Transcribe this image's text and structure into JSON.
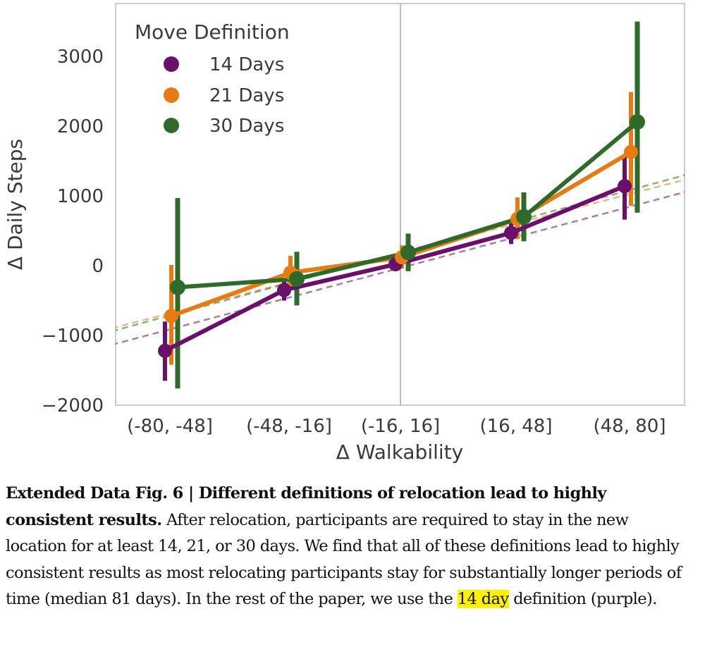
{
  "chart_data": {
    "type": "line",
    "xlabel": "Δ Walkability",
    "ylabel": "Δ Daily Steps",
    "categories": [
      "(-80, -48]",
      "(-48, -16]",
      "(-16, 16]",
      "(16, 48]",
      "(48, 80]"
    ],
    "ylim": [
      -2000,
      3600
    ],
    "yticks": [
      -2000,
      -1000,
      0,
      1000,
      2000,
      3000
    ],
    "ytick_labels": [
      "−2000",
      "−1000",
      "0",
      "1000",
      "2000",
      "3000"
    ],
    "grid": false,
    "vertical_reference_line": "(-16, 16]",
    "legend": {
      "title": "Move Definition",
      "placement": "top-left"
    },
    "series": [
      {
        "name": "14 Days",
        "color": "#6a0f6a",
        "values": [
          -1220,
          -350,
          20,
          470,
          1140
        ],
        "ci_low": [
          -1650,
          -500,
          -50,
          310,
          660
        ],
        "ci_high": [
          -800,
          -200,
          90,
          620,
          1560
        ],
        "trend": {
          "x_start": -92,
          "x_end": 101,
          "y_start": -1290,
          "y_end": 1350
        }
      },
      {
        "name": "21 Days",
        "color": "#e57b12",
        "values": [
          -720,
          -100,
          120,
          670,
          1630
        ],
        "ci_low": [
          -1420,
          -330,
          -40,
          380,
          860
        ],
        "ci_high": [
          10,
          140,
          290,
          980,
          2490
        ],
        "trend": {
          "x_start": -92,
          "x_end": 101,
          "y_start": -1050,
          "y_end": 1520
        }
      },
      {
        "name": "30 Days",
        "color": "#2e6b2a",
        "values": [
          -310,
          -190,
          190,
          700,
          2060
        ],
        "ci_low": [
          -1760,
          -570,
          -80,
          350,
          760
        ],
        "ci_high": [
          970,
          200,
          460,
          1050,
          3500
        ],
        "trend": {
          "x_start": -92,
          "x_end": 101,
          "y_start": -1100,
          "y_end": 1600
        }
      }
    ]
  },
  "caption": {
    "title": "Extended Data Fig. 6 | Different definitions of relocation lead to highly consistent results.",
    "body_before": " After relocation, participants are required to stay in the new location for at least 14, 21, or 30 days. We find that all of these definitions lead to highly consistent results as most relocating participants stay for substantially longer periods of time (median 81 days). In the rest of the paper, we use the ",
    "highlight": "14 day",
    "body_after": " definition (purple)."
  }
}
